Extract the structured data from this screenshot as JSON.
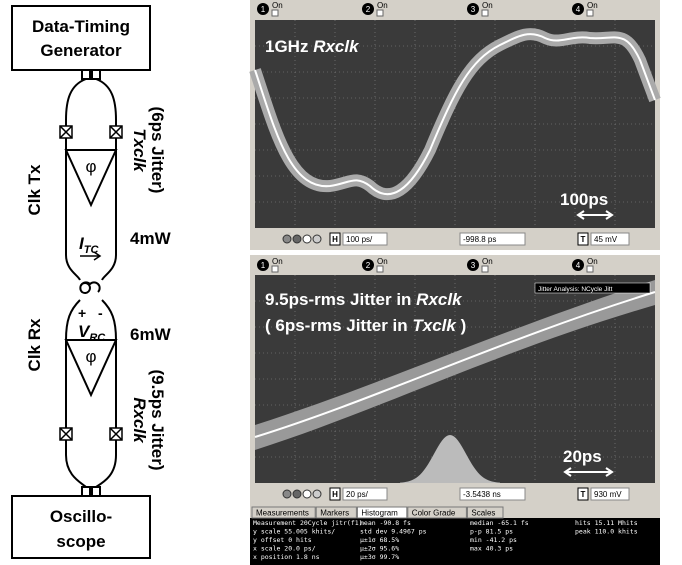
{
  "diagram": {
    "generator": {
      "line1": "Data-Timing",
      "line2": "Generator"
    },
    "oscilloscope": {
      "line1": "Oscillo-",
      "line2": "scope"
    },
    "tx": {
      "label": "Clk Tx",
      "buffer": "φ",
      "signal": "Txclk",
      "jitter": "(6ps Jitter)",
      "power": "4mW",
      "current": {
        "symbol": "I",
        "subscript": "TC"
      }
    },
    "rx": {
      "label": "Clk Rx",
      "buffer": "φ",
      "signal": "Rxclk",
      "jitter": "(9.5ps Jitter)",
      "power": "6mW",
      "plus": "+",
      "minus": "-",
      "voltage": {
        "symbol": "V",
        "subscript": "RC"
      }
    }
  },
  "scope_top": {
    "channels": [
      "1",
      "2",
      "3",
      "4"
    ],
    "channel_state": "On",
    "title": {
      "plain": "1GHz ",
      "italic": "Rxclk"
    },
    "scale_label": "100ps",
    "toolbar": {
      "h": "H",
      "timebase": "100 ps/",
      "position": "-998.8 ps",
      "t": "T",
      "trigger": "45 mV"
    }
  },
  "scope_bottom": {
    "channels": [
      "1",
      "2",
      "3",
      "4"
    ],
    "channel_state": "On",
    "title1": {
      "plain": "9.5ps-rms Jitter in ",
      "italic": "Rxclk"
    },
    "title2": {
      "plain1": "( 6ps-rms Jitter in ",
      "italic": "Txclk",
      "plain2": " )"
    },
    "analysis": "Jitter Analysis: NCycle Jitt",
    "scale_label": "20ps",
    "toolbar": {
      "h": "H",
      "timebase": "20 ps/",
      "position": "-3.5438 ns",
      "t": "T",
      "trigger": "930 mV"
    },
    "tabs": [
      "Measurements",
      "Markers",
      "Histogram",
      "Color Grade",
      "Scales"
    ],
    "table": [
      [
        "Measurement  20Cycle jitr(f1)",
        "mean  -90.8 fs",
        "median  -65.1 fs",
        "hits  15.11 Mhits"
      ],
      [
        "y scale  55.005 khits/",
        "std dev  9.4967 ps",
        "p-p  81.5 ps",
        "peak  110.0 khits"
      ],
      [
        "y offset  0 hits",
        "μ±1σ  68.5%",
        "min  -41.2 ps",
        ""
      ],
      [
        "x scale  20.0 ps/",
        "μ±2σ  95.6%",
        "max  40.3 ps",
        ""
      ],
      [
        "x position  1.8 ns",
        "μ±3σ  99.7%",
        "",
        ""
      ]
    ]
  }
}
